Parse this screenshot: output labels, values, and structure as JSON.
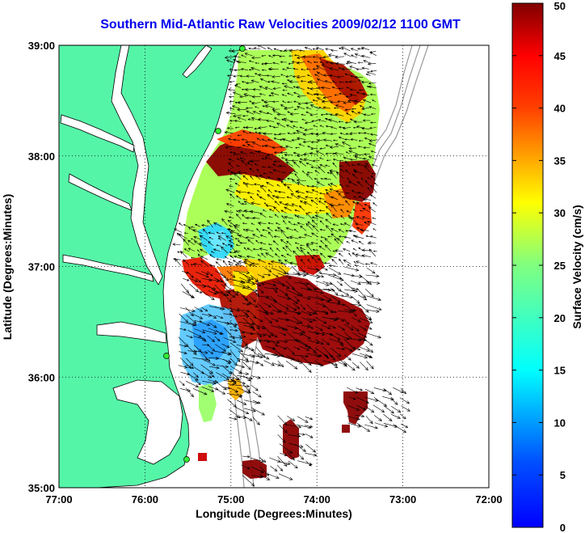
{
  "title": "Southern Mid-Atlantic Raw Velocities 2009/02/12 1100 GMT",
  "map": {
    "xlabel": "Longitude (Degrees:Minutes)",
    "ylabel": "Latitude (Degrees:Minutes)",
    "lon_range": [
      -77,
      -72
    ],
    "lat_range": [
      35,
      39
    ],
    "x_ticks": [
      {
        "value": -77,
        "label": "77:00"
      },
      {
        "value": -76,
        "label": "76:00"
      },
      {
        "value": -75,
        "label": "75:00"
      },
      {
        "value": -74,
        "label": "74:00"
      },
      {
        "value": -73,
        "label": "73:00"
      },
      {
        "value": -72,
        "label": "72:00"
      }
    ],
    "y_ticks": [
      {
        "value": 35,
        "label": "35:00"
      },
      {
        "value": 36,
        "label": "36:00"
      },
      {
        "value": 37,
        "label": "37:00"
      },
      {
        "value": 38,
        "label": "38:00"
      },
      {
        "value": 39,
        "label": "39:00"
      }
    ],
    "grid": true,
    "land_color": "#55f5a8",
    "vector_color": "#000000"
  },
  "colorbar": {
    "label": "Surface Velocity (cm/s)",
    "range": [
      0,
      50
    ],
    "ticks": [
      {
        "value": 0,
        "label": "0"
      },
      {
        "value": 5,
        "label": "5"
      },
      {
        "value": 10,
        "label": "10"
      },
      {
        "value": 15,
        "label": "15"
      },
      {
        "value": 20,
        "label": "20"
      },
      {
        "value": 25,
        "label": "25"
      },
      {
        "value": 30,
        "label": "30"
      },
      {
        "value": 35,
        "label": "35"
      },
      {
        "value": 40,
        "label": "40"
      },
      {
        "value": 45,
        "label": "45"
      },
      {
        "value": 50,
        "label": "50"
      }
    ]
  }
}
